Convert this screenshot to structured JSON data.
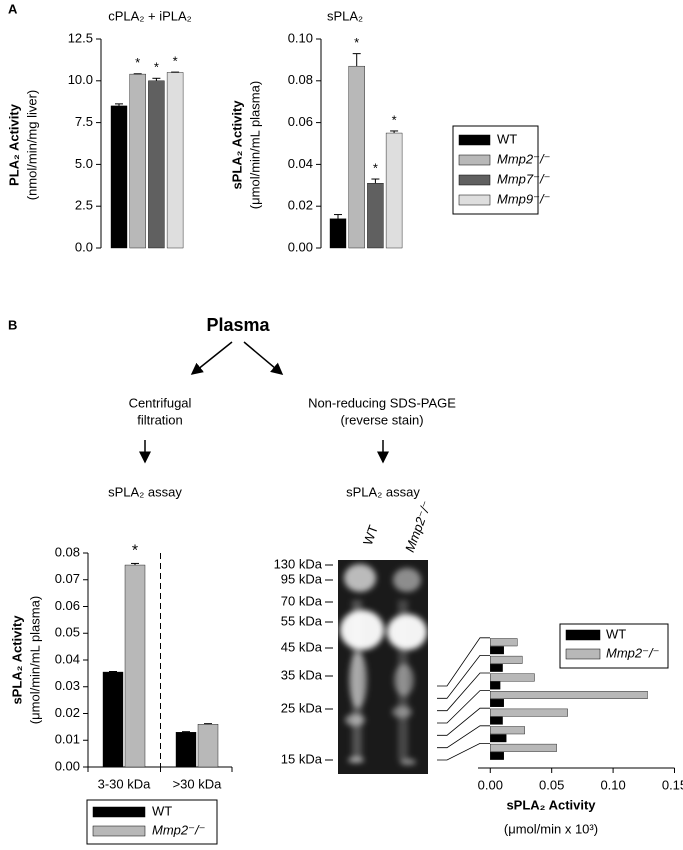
{
  "panel_labels": [
    "A",
    "B"
  ],
  "flowchart": {
    "root": "Plasma",
    "left_step": [
      "Centrifugal",
      "filtration"
    ],
    "right_step": [
      "Non-reducing SDS-PAGE",
      "(reverse stain)"
    ],
    "left_assay": "sPLA₂ assay",
    "right_assay": "sPLA₂ assay"
  },
  "gel": {
    "lanes": [
      "WT",
      "Mmp2⁻/⁻"
    ],
    "markers": [
      "130 kDa",
      "95 kDa",
      "70 kDa",
      "55 kDa",
      "45 kDa",
      "35 kDa",
      "25 kDa",
      "15 kDa"
    ]
  },
  "chart_data": [
    {
      "type": "bar",
      "title": "cPLA₂ + iPLA₂",
      "ylabel": "PLA₂ Activity",
      "ylabel_units": "(nmol/min/mg liver)",
      "categories": [
        null,
        null,
        null,
        null
      ],
      "values": [
        8.5,
        10.4,
        10.0,
        10.5
      ],
      "errors": [
        0.12,
        0.02,
        0.15,
        0.02
      ],
      "colors": [
        "#000000",
        "#b8b8b8",
        "#606060",
        "#dedede"
      ],
      "annotations": [
        null,
        "*",
        "*",
        "*"
      ],
      "ylim": [
        0,
        12.5
      ],
      "yticks": [
        {
          "value": 0,
          "label": "0.0"
        },
        2.5,
        {
          "value": 5,
          "label": "5.0"
        },
        7.5,
        {
          "value": 10,
          "label": "10.0"
        },
        12.5
      ]
    },
    {
      "type": "bar",
      "title": "sPLA₂",
      "ylabel": "sPLA₂ Activity",
      "ylabel_units": "(μmol/min/mL plasma)",
      "categories": [
        null,
        null,
        null,
        null
      ],
      "values": [
        0.014,
        0.087,
        0.031,
        0.055
      ],
      "errors": [
        0.002,
        0.006,
        0.002,
        0.001
      ],
      "colors": [
        "#000000",
        "#b8b8b8",
        "#606060",
        "#dedede"
      ],
      "annotations": [
        null,
        "*",
        "*",
        "*"
      ],
      "ylim": [
        0,
        0.1
      ],
      "yticks": [
        {
          "value": 0,
          "label": "0.00"
        },
        0.02,
        0.04,
        0.06,
        0.08,
        {
          "value": 0.1,
          "label": "0.10"
        }
      ],
      "legend": [
        {
          "name": "WT",
          "color": "#000000"
        },
        {
          "name": "Mmp2⁻/⁻",
          "color": "#b8b8b8"
        },
        {
          "name": "Mmp7⁻/⁻",
          "color": "#606060"
        },
        {
          "name": "Mmp9⁻/⁻",
          "color": "#dedede"
        }
      ]
    },
    {
      "type": "grouped_bar",
      "ylabel": "sPLA₂ Activity",
      "ylabel_units": "(μmol/min/mL plasma)",
      "categories": [
        "3-30 kDa",
        ">30 kDa"
      ],
      "series": [
        {
          "name": "WT",
          "color": "#000000",
          "values": [
            0.0355,
            0.013
          ],
          "errors": [
            0.0002,
            0.0002
          ],
          "annotations": [
            null,
            null
          ]
        },
        {
          "name": "Mmp2⁻/⁻",
          "color": "#b8b8b8",
          "values": [
            0.0755,
            0.016
          ],
          "errors": [
            0.0006,
            0.0002
          ],
          "annotations": [
            "*",
            null
          ]
        }
      ],
      "divider": true,
      "ylim": [
        0,
        0.08
      ],
      "yticks": [
        {
          "value": 0,
          "label": "0.00"
        },
        0.01,
        0.02,
        0.03,
        0.04,
        0.05,
        0.06,
        0.07,
        0.08
      ]
    },
    {
      "type": "barh",
      "xlabel": "sPLA₂ Activity",
      "xlabel_units": "(μmol/min x 10³)",
      "categories": [
        null,
        null,
        null,
        null,
        null,
        null,
        null
      ],
      "series": [
        {
          "name": "WT",
          "color": "#000000",
          "values": [
            0.011,
            0.01,
            0.008,
            0.011,
            0.01,
            0.013,
            0.011
          ]
        },
        {
          "name": "Mmp2⁻/⁻",
          "color": "#b8b8b8",
          "values": [
            0.022,
            0.026,
            0.036,
            0.128,
            0.063,
            0.028,
            0.054
          ]
        }
      ],
      "xlim": [
        -0.01,
        0.15
      ],
      "xticks": [
        {
          "value": 0,
          "label": "0.00"
        },
        0.05,
        {
          "value": 0.1,
          "label": "0.10"
        },
        0.15
      ]
    }
  ]
}
